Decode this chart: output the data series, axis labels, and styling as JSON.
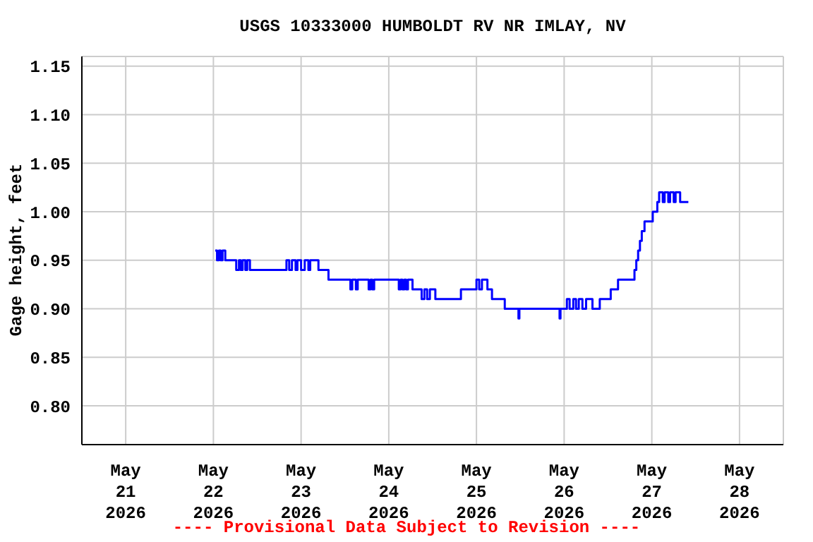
{
  "chart_data": {
    "type": "step",
    "title": "USGS 10333000 HUMBOLDT RV NR IMLAY, NV",
    "ylabel": "Gage height, feet",
    "annotations": [
      "---- Provisional Data Subject to Revision ----"
    ],
    "x": [
      "2026-05-22T00:30",
      "2026-05-22T01:00",
      "2026-05-22T01:30",
      "2026-05-22T02:00",
      "2026-05-22T02:30",
      "2026-05-22T03:15",
      "2026-05-22T06:15",
      "2026-05-22T07:00",
      "2026-05-22T07:30",
      "2026-05-22T08:00",
      "2026-05-22T08:45",
      "2026-05-22T09:15",
      "2026-05-22T10:00",
      "2026-05-22T20:00",
      "2026-05-22T20:45",
      "2026-05-22T21:30",
      "2026-05-22T22:30",
      "2026-05-22T23:00",
      "2026-05-23T00:00",
      "2026-05-23T01:00",
      "2026-05-23T02:00",
      "2026-05-23T02:30",
      "2026-05-23T04:45",
      "2026-05-23T07:30",
      "2026-05-23T13:30",
      "2026-05-23T14:00",
      "2026-05-23T15:00",
      "2026-05-23T15:30",
      "2026-05-23T18:30",
      "2026-05-23T19:00",
      "2026-05-23T19:30",
      "2026-05-23T20:00",
      "2026-05-24T02:45",
      "2026-05-24T03:15",
      "2026-05-24T03:45",
      "2026-05-24T04:15",
      "2026-05-24T04:45",
      "2026-05-24T05:15",
      "2026-05-24T06:30",
      "2026-05-24T09:00",
      "2026-05-24T09:45",
      "2026-05-24T10:30",
      "2026-05-24T11:15",
      "2026-05-24T12:45",
      "2026-05-24T19:45",
      "2026-05-25T00:00",
      "2026-05-25T00:45",
      "2026-05-25T01:30",
      "2026-05-25T03:00",
      "2026-05-25T04:15",
      "2026-05-25T05:45",
      "2026-05-25T07:45",
      "2026-05-25T11:30",
      "2026-05-25T11:45",
      "2026-05-25T22:45",
      "2026-05-25T23:00",
      "2026-05-26T00:45",
      "2026-05-26T01:30",
      "2026-05-26T02:30",
      "2026-05-26T03:15",
      "2026-05-26T04:00",
      "2026-05-26T05:00",
      "2026-05-26T06:00",
      "2026-05-26T07:45",
      "2026-05-26T09:45",
      "2026-05-26T12:45",
      "2026-05-26T14:45",
      "2026-05-26T19:15",
      "2026-05-26T19:45",
      "2026-05-26T20:15",
      "2026-05-26T20:45",
      "2026-05-26T21:15",
      "2026-05-26T22:00",
      "2026-05-27T00:15",
      "2026-05-27T01:30",
      "2026-05-27T02:00",
      "2026-05-27T03:00",
      "2026-05-27T03:30",
      "2026-05-27T04:30",
      "2026-05-27T05:00",
      "2026-05-27T06:00",
      "2026-05-27T06:30",
      "2026-05-27T07:45",
      "2026-05-27T10:00"
    ],
    "series": [
      {
        "color": "#0000ff",
        "values": [
          0.96,
          0.95,
          0.96,
          0.95,
          0.96,
          0.95,
          0.94,
          0.95,
          0.94,
          0.95,
          0.94,
          0.95,
          0.94,
          0.95,
          0.94,
          0.95,
          0.94,
          0.95,
          0.94,
          0.95,
          0.94,
          0.95,
          0.94,
          0.93,
          0.92,
          0.93,
          0.92,
          0.93,
          0.92,
          0.93,
          0.92,
          0.93,
          0.92,
          0.93,
          0.92,
          0.93,
          0.92,
          0.93,
          0.92,
          0.91,
          0.92,
          0.91,
          0.92,
          0.91,
          0.92,
          0.93,
          0.92,
          0.93,
          0.92,
          0.91,
          0.91,
          0.9,
          0.89,
          0.9,
          0.89,
          0.9,
          0.91,
          0.9,
          0.91,
          0.9,
          0.91,
          0.9,
          0.91,
          0.9,
          0.91,
          0.92,
          0.93,
          0.94,
          0.95,
          0.96,
          0.97,
          0.98,
          0.99,
          1.0,
          1.01,
          1.02,
          1.01,
          1.02,
          1.01,
          1.02,
          1.01,
          1.02,
          1.01,
          1.01
        ]
      }
    ],
    "xlim": [
      "2026-05-20T12:00",
      "2026-05-28T12:00"
    ],
    "xticks": [
      {
        "value": "2026-05-21",
        "label": "May\n21\n2026"
      },
      {
        "value": "2026-05-22",
        "label": "May\n22\n2026"
      },
      {
        "value": "2026-05-23",
        "label": "May\n23\n2026"
      },
      {
        "value": "2026-05-24",
        "label": "May\n24\n2026"
      },
      {
        "value": "2026-05-25",
        "label": "May\n25\n2026"
      },
      {
        "value": "2026-05-26",
        "label": "May\n26\n2026"
      },
      {
        "value": "2026-05-27",
        "label": "May\n27\n2026"
      },
      {
        "value": "2026-05-28",
        "label": "May\n28\n2026"
      }
    ],
    "ylim": [
      0.76,
      1.16
    ],
    "yticks": [
      {
        "value": 0.8,
        "label": "0.80"
      },
      {
        "value": 0.85,
        "label": "0.85"
      },
      {
        "value": 0.9,
        "label": "0.90"
      },
      {
        "value": 0.95,
        "label": "0.95"
      },
      {
        "value": 1.0,
        "label": "1.00"
      },
      {
        "value": 1.05,
        "label": "1.05"
      },
      {
        "value": 1.1,
        "label": "1.10"
      },
      {
        "value": 1.15,
        "label": "1.15"
      }
    ],
    "grid": true
  }
}
